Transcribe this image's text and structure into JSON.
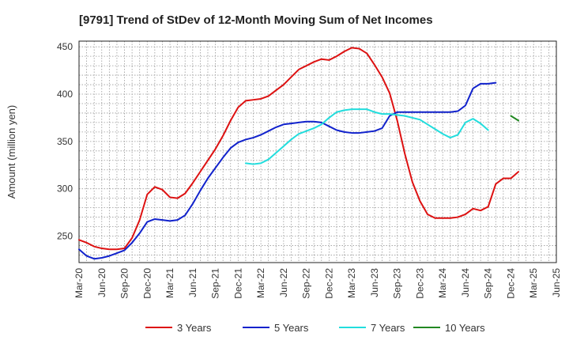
{
  "chart_data": {
    "type": "line",
    "title": "[9791]  Trend of StDev of 12-Month Moving Sum of Net Incomes",
    "ylabel": "Amount (million yen)",
    "xlabel": "",
    "ylim": [
      222,
      456
    ],
    "yticks": [
      250,
      300,
      350,
      400,
      450
    ],
    "x_ticks": [
      "Mar-20",
      "Jun-20",
      "Sep-20",
      "Dec-20",
      "Mar-21",
      "Jun-21",
      "Sep-21",
      "Dec-21",
      "Mar-22",
      "Jun-22",
      "Sep-22",
      "Dec-22",
      "Mar-23",
      "Jun-23",
      "Sep-23",
      "Dec-23",
      "Mar-24",
      "Jun-24",
      "Sep-24",
      "Dec-24",
      "Mar-25",
      "Jun-25"
    ],
    "grid": true,
    "legend_position": "bottom",
    "series": [
      {
        "name": "3 Years",
        "color": "#dd1111",
        "start_index": 0,
        "values": [
          246,
          243,
          239,
          237,
          236,
          236,
          237,
          248,
          267,
          294,
          302,
          299,
          291,
          290,
          295,
          306,
          318,
          330,
          342,
          356,
          372,
          386,
          393,
          394,
          395,
          398,
          404,
          410,
          418,
          426,
          430,
          434,
          437,
          436,
          440,
          445,
          449,
          448,
          443,
          431,
          418,
          401,
          372,
          337,
          307,
          287,
          273,
          269,
          269,
          269,
          270,
          273,
          279,
          277,
          281,
          305,
          311,
          311,
          318
        ],
        "overrides": {}
      },
      {
        "name": "5 Years",
        "color": "#1122cc",
        "start_index": 0,
        "values": [
          236,
          229,
          226,
          227,
          229,
          232,
          235,
          243,
          253,
          265,
          268,
          267,
          266,
          267,
          272,
          284,
          298,
          311,
          322,
          333,
          343,
          349,
          352,
          354,
          357,
          361,
          365,
          368,
          369,
          370,
          371,
          371,
          370,
          366,
          362,
          360,
          359,
          359,
          360,
          361,
          364,
          377,
          381,
          381,
          381,
          381,
          381,
          381,
          381,
          381,
          382,
          388,
          406,
          411,
          411,
          412
        ],
        "overrides": {}
      },
      {
        "name": "7 Years",
        "color": "#22dddd",
        "start_index": 22,
        "values": [
          327,
          326,
          327,
          331,
          338,
          345,
          352,
          358,
          361,
          364,
          368,
          375,
          381,
          383,
          384,
          384,
          384,
          381,
          379,
          379,
          378,
          377,
          375,
          373,
          368,
          363,
          358,
          354,
          357,
          370,
          374,
          369,
          362
        ],
        "overrides": {}
      },
      {
        "name": "10 Years",
        "color": "#228822",
        "start_index": 57,
        "values": [
          377,
          372
        ],
        "overrides": {}
      }
    ]
  }
}
